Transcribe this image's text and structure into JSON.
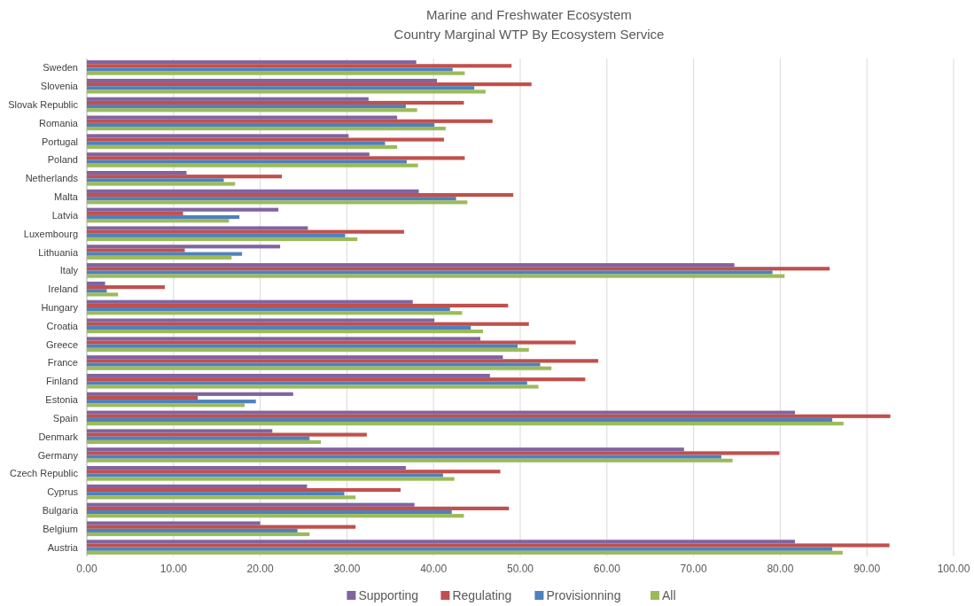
{
  "chart_data": {
    "type": "bar",
    "orientation": "horizontal",
    "title": "Marine and Freshwater Ecosystem",
    "subtitle": "Country Marginal WTP By Ecosystem Service",
    "categories": [
      "Sweden",
      "Slovenia",
      "Slovak Republic",
      "Romania",
      "Portugal",
      "Poland",
      "Netherlands",
      "Malta",
      "Latvia",
      "Luxembourg",
      "Lithuania",
      "Italy",
      "Ireland",
      "Hungary",
      "Croatia",
      "Greece",
      "France",
      "Finland",
      "Estonia",
      "Spain",
      "Denmark",
      "Germany",
      "Czech Republic",
      "Cyprus",
      "Bulgaria",
      "Belgium",
      "Austria"
    ],
    "series": [
      {
        "name": "Supporting",
        "color": "#8064a2",
        "values": [
          38.0,
          40.4,
          32.5,
          35.8,
          30.2,
          32.6,
          11.5,
          38.3,
          22.1,
          25.5,
          22.3,
          74.7,
          2.1,
          37.6,
          40.1,
          45.4,
          48.0,
          46.5,
          23.8,
          81.7,
          21.4,
          68.9,
          36.8,
          25.4,
          37.8,
          20.0,
          81.7
        ]
      },
      {
        "name": "Regulating",
        "color": "#c0504d",
        "values": [
          49.0,
          51.3,
          43.5,
          46.8,
          41.2,
          43.6,
          22.5,
          49.2,
          11.1,
          36.6,
          11.3,
          85.7,
          9.0,
          48.6,
          51.0,
          56.4,
          59.0,
          57.5,
          12.8,
          92.7,
          32.3,
          79.9,
          47.7,
          36.2,
          48.7,
          31.0,
          92.6
        ]
      },
      {
        "name": "Provisionning",
        "color": "#4f81bd",
        "values": [
          42.2,
          44.7,
          36.8,
          40.1,
          34.4,
          36.9,
          15.8,
          42.6,
          17.6,
          29.8,
          17.9,
          79.1,
          2.3,
          41.9,
          44.3,
          49.7,
          52.3,
          50.8,
          19.5,
          86.0,
          25.7,
          73.2,
          41.1,
          29.7,
          42.1,
          24.3,
          86.0
        ]
      },
      {
        "name": "All",
        "color": "#9bbb59",
        "values": [
          43.6,
          46.0,
          38.1,
          41.4,
          35.8,
          38.2,
          17.1,
          43.9,
          16.4,
          31.2,
          16.7,
          80.5,
          3.6,
          43.3,
          45.7,
          51.0,
          53.6,
          52.1,
          18.2,
          87.3,
          27.0,
          74.5,
          42.4,
          31.0,
          43.5,
          25.7,
          87.2
        ]
      }
    ],
    "xlim": [
      0,
      100
    ],
    "xticks": [
      {
        "value": 0,
        "label": "0.00"
      },
      {
        "value": 10,
        "label": "10.00"
      },
      {
        "value": 20,
        "label": "20.00"
      },
      {
        "value": 30,
        "label": "30.00"
      },
      {
        "value": 40,
        "label": "40.00"
      },
      {
        "value": 50,
        "label": "50.00"
      },
      {
        "value": 60,
        "label": "60.00"
      },
      {
        "value": 70,
        "label": "70.00"
      },
      {
        "value": 80,
        "label": "80.00"
      },
      {
        "value": 90,
        "label": "90.00"
      },
      {
        "value": 100,
        "label": "100.00"
      }
    ],
    "grid": "x",
    "legend": "bottom"
  }
}
